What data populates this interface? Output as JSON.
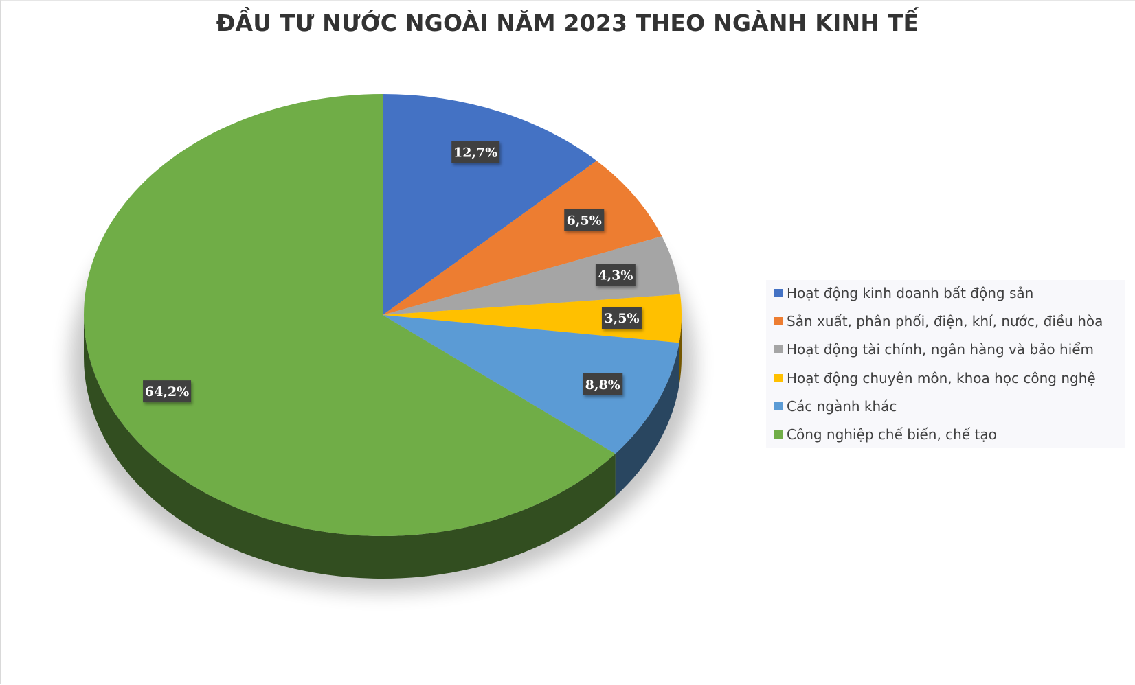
{
  "chart_data": {
    "type": "pie",
    "title": "ĐẦU TƯ NƯỚC NGOÀI NĂM 2023 THEO NGÀNH KINH TẾ",
    "legend_position": "right",
    "style": "3d",
    "slices": [
      {
        "name": "Hoạt động kinh doanh bất động sản",
        "value": 12.7,
        "label": "12,7%",
        "color": "#4472c4"
      },
      {
        "name": "Sản xuất, phân phối, điện, khí, nước, điều hòa",
        "value": 6.5,
        "label": "6,5%",
        "color": "#ed7d31"
      },
      {
        "name": "Hoạt động tài chính, ngân hàng và bảo hiểm",
        "value": 4.3,
        "label": "4,3%",
        "color": "#a5a5a5"
      },
      {
        "name": "Hoạt động chuyên môn, khoa học công nghệ",
        "value": 3.5,
        "label": "3,5%",
        "color": "#ffc000"
      },
      {
        "name": "Các ngành khác",
        "value": 8.8,
        "label": "8,8%",
        "color": "#5b9bd5"
      },
      {
        "name": "Công nghiệp chế biến, chế tạo",
        "value": 64.2,
        "label": "64,2%",
        "color": "#70ad47"
      }
    ]
  }
}
